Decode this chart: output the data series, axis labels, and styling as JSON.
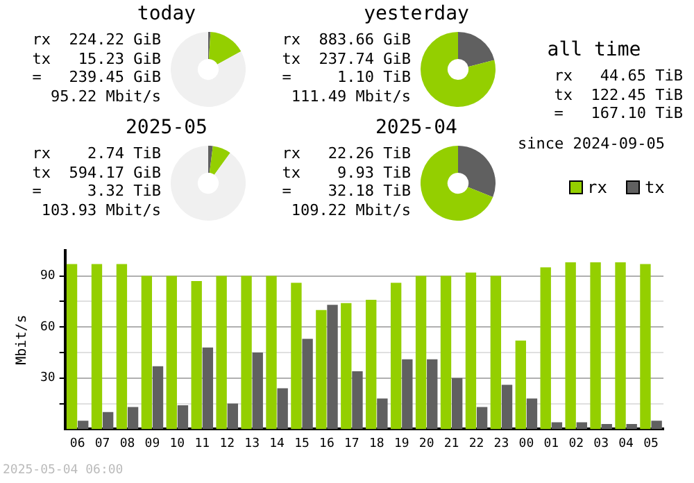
{
  "chart_data": [
    {
      "type": "donut",
      "title": "today",
      "categories": [
        null,
        null,
        null
      ],
      "values": [
        1,
        16,
        83
      ],
      "colors": [
        "#606060",
        "#94cf00",
        "#f0f0f0"
      ],
      "annotations": [
        "rx  224.22 GiB",
        "tx   15.23 GiB",
        "=   239.45 GiB",
        "95.22 Mbit/s"
      ]
    },
    {
      "type": "donut",
      "title": "yesterday",
      "categories": [
        null,
        null
      ],
      "values": [
        21,
        79
      ],
      "colors": [
        "#606060",
        "#94cf00"
      ],
      "annotations": [
        "rx  883.66 GiB",
        "tx  237.74 GiB",
        "=     1.10 TiB",
        "111.49 Mbit/s"
      ]
    },
    {
      "type": "donut",
      "title": "2025-05",
      "categories": [
        null,
        null,
        null
      ],
      "values": [
        2,
        8,
        90
      ],
      "colors": [
        "#606060",
        "#94cf00",
        "#f0f0f0"
      ],
      "annotations": [
        "rx    2.74 TiB",
        "tx  594.17 GiB",
        "=     3.32 TiB",
        "103.93 Mbit/s"
      ]
    },
    {
      "type": "donut",
      "title": "2025-04",
      "categories": [
        null,
        null
      ],
      "values": [
        31,
        69
      ],
      "colors": [
        "#606060",
        "#94cf00"
      ],
      "annotations": [
        "rx   22.26 TiB",
        "tx    9.93 TiB",
        "=    32.18 TiB",
        "109.22 Mbit/s"
      ]
    },
    {
      "type": "other",
      "title": "all time",
      "annotations": [
        "rx   44.65 TiB",
        "tx  122.45 TiB",
        "=   167.10 TiB",
        "since 2024-09-05"
      ]
    },
    {
      "type": "bar",
      "ylabel": "Mbit/s",
      "legend": "top right",
      "grid": "y",
      "categories": [
        "06",
        "07",
        "08",
        "09",
        "10",
        "11",
        "12",
        "13",
        "14",
        "15",
        "16",
        "17",
        "18",
        "19",
        "20",
        "21",
        "22",
        "23",
        "00",
        "01",
        "02",
        "03",
        "04",
        "05"
      ],
      "series": [
        {
          "name": "rx",
          "color": "#94cf00",
          "values": [
            97,
            97,
            97,
            90,
            90,
            87,
            90,
            90,
            90,
            86,
            70,
            74,
            76,
            86,
            90,
            90,
            92,
            90,
            52,
            95,
            98,
            98,
            98,
            97
          ]
        },
        {
          "name": "tx",
          "color": "#606060",
          "values": [
            5,
            10,
            13,
            37,
            14,
            48,
            15,
            45,
            24,
            53,
            73,
            34,
            18,
            41,
            41,
            30,
            13,
            26,
            18,
            4,
            4,
            3,
            3,
            5
          ]
        }
      ],
      "ylim": [
        0,
        105
      ],
      "yticks": [
        {
          "value": 15,
          "label": null
        },
        30,
        {
          "value": 45,
          "label": null
        },
        60,
        {
          "value": 75,
          "label": null
        },
        90
      ],
      "annotations": [
        "2025-05-04 06:00"
      ]
    }
  ]
}
